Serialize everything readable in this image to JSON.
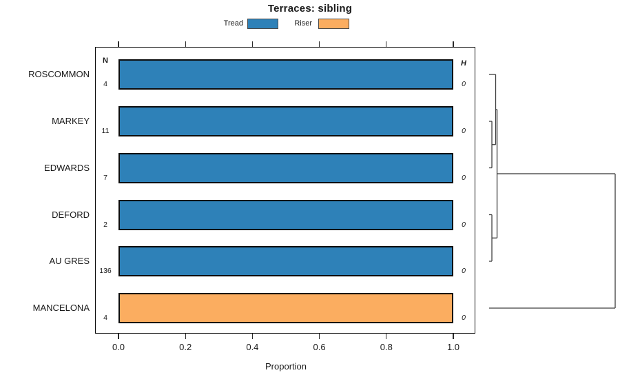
{
  "title": "Terraces: sibling",
  "legend": {
    "items": [
      {
        "label": "Tread",
        "color": "#2E81B8"
      },
      {
        "label": "Riser",
        "color": "#FBAD60"
      }
    ]
  },
  "table": {
    "n_header": "N",
    "h_header": "H"
  },
  "rows": [
    {
      "label": "ROSCOMMON",
      "n": "4",
      "h": "0",
      "series": "Tread",
      "value": 1.0
    },
    {
      "label": "MARKEY",
      "n": "11",
      "h": "0",
      "series": "Tread",
      "value": 1.0
    },
    {
      "label": "EDWARDS",
      "n": "7",
      "h": "0",
      "series": "Tread",
      "value": 1.0
    },
    {
      "label": "DEFORD",
      "n": "2",
      "h": "0",
      "series": "Tread",
      "value": 1.0
    },
    {
      "label": "AU GRES",
      "n": "136",
      "h": "0",
      "series": "Tread",
      "value": 1.0
    },
    {
      "label": "MANCELONA",
      "n": "4",
      "h": "0",
      "series": "Riser",
      "value": 1.0
    }
  ],
  "x_axis": {
    "label": "Proportion",
    "ticks": [
      "0.0",
      "0.2",
      "0.4",
      "0.6",
      "0.8",
      "1.0"
    ]
  },
  "chart_data": {
    "type": "bar",
    "orientation": "horizontal",
    "stacked": true,
    "title": "Terraces: sibling",
    "categories": [
      "ROSCOMMON",
      "MARKEY",
      "EDWARDS",
      "DEFORD",
      "AU GRES",
      "MANCELONA"
    ],
    "series": [
      {
        "name": "Tread",
        "color": "#2E81B8",
        "values": [
          1.0,
          1.0,
          1.0,
          1.0,
          1.0,
          0.0
        ]
      },
      {
        "name": "Riser",
        "color": "#FBAD60",
        "values": [
          0.0,
          0.0,
          0.0,
          0.0,
          0.0,
          1.0
        ]
      }
    ],
    "n_counts": [
      4,
      11,
      7,
      2,
      136,
      4
    ],
    "h_values": [
      0,
      0,
      0,
      0,
      0,
      0
    ],
    "xlabel": "Proportion",
    "xlim": [
      0,
      1
    ],
    "xticks": [
      0.0,
      0.2,
      0.4,
      0.6,
      0.8,
      1.0
    ],
    "grid": false,
    "legend_position": "top",
    "dendrogram": {
      "side": "right",
      "leaves": [
        "ROSCOMMON",
        "MARKEY",
        "EDWARDS",
        "DEFORD",
        "AU GRES",
        "MANCELONA"
      ],
      "merges": [
        {
          "a": "leaf:1",
          "b": "leaf:2",
          "height": 0.022
        },
        {
          "a": "leaf:0",
          "b": "merge:0",
          "height": 0.052
        },
        {
          "a": "leaf:3",
          "b": "leaf:4",
          "height": 0.022
        },
        {
          "a": "merge:1",
          "b": "merge:2",
          "height": 0.063
        },
        {
          "a": "merge:3",
          "b": "leaf:5",
          "height": 1.0
        }
      ]
    }
  }
}
